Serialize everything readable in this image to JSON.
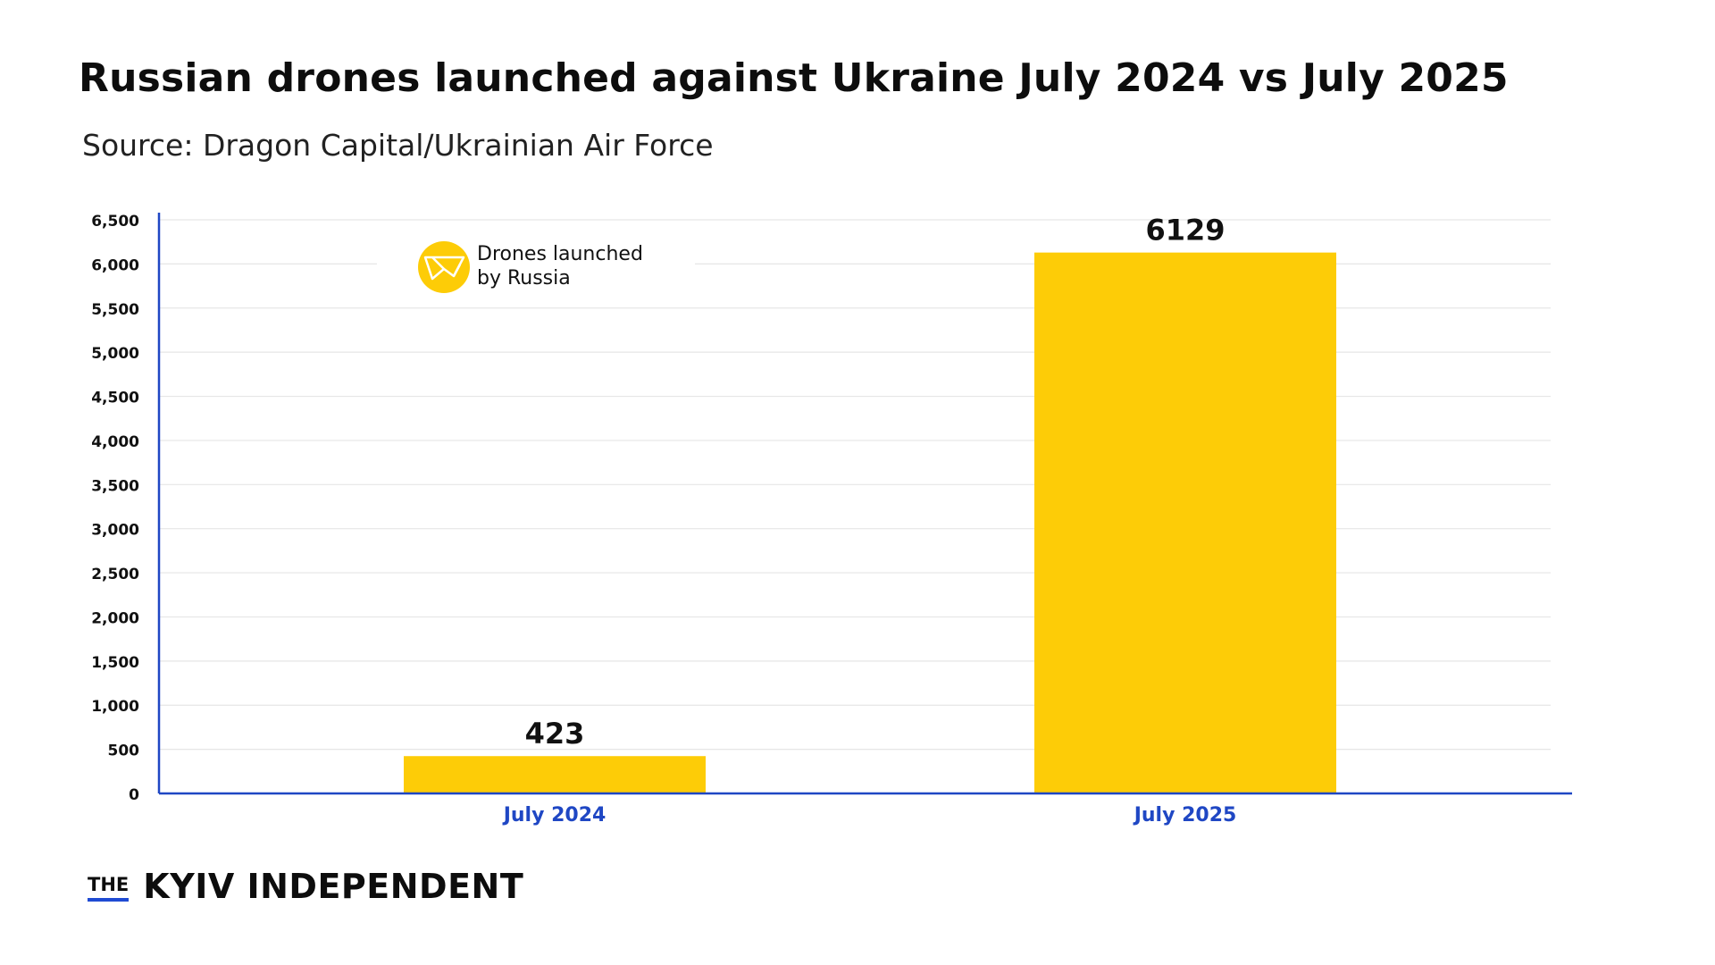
{
  "title": "Russian drones launched against Ukraine July 2024 vs July 2025",
  "subtitle": "Source: Dragon Capital/Ukrainian Air Force",
  "brand": {
    "the": "THE",
    "name": "KYIV INDEPENDENT",
    "underline_color": "#1f4bd3"
  },
  "legend": {
    "label_line1": "Drones launched",
    "label_line2": "by Russia",
    "icon": "drone-icon"
  },
  "colors": {
    "bar": "#fdcc07",
    "axis": "#1f47c4",
    "category_label": "#1f47c4",
    "grid": "#e6e6e6"
  },
  "chart_data": {
    "type": "bar",
    "categories": [
      "July 2024",
      "July 2025"
    ],
    "values": [
      423,
      6129
    ],
    "data_labels": [
      "423",
      "6129"
    ],
    "series": [
      {
        "name": "Drones launched by Russia",
        "values": [
          423,
          6129
        ]
      }
    ],
    "xlabel": "",
    "ylabel": "",
    "ylim": [
      0,
      6500
    ],
    "y_ticks": [
      0,
      500,
      1000,
      1500,
      2000,
      2500,
      3000,
      3500,
      4000,
      4500,
      5000,
      5500,
      6000,
      6500
    ],
    "y_tick_labels": [
      "0",
      "500",
      "1,000",
      "1,500",
      "2,000",
      "2,500",
      "3,000",
      "3,500",
      "4,000",
      "4,500",
      "5,000",
      "5,500",
      "6,000",
      "6,500"
    ],
    "grid": true,
    "legend_position": "top-left"
  }
}
